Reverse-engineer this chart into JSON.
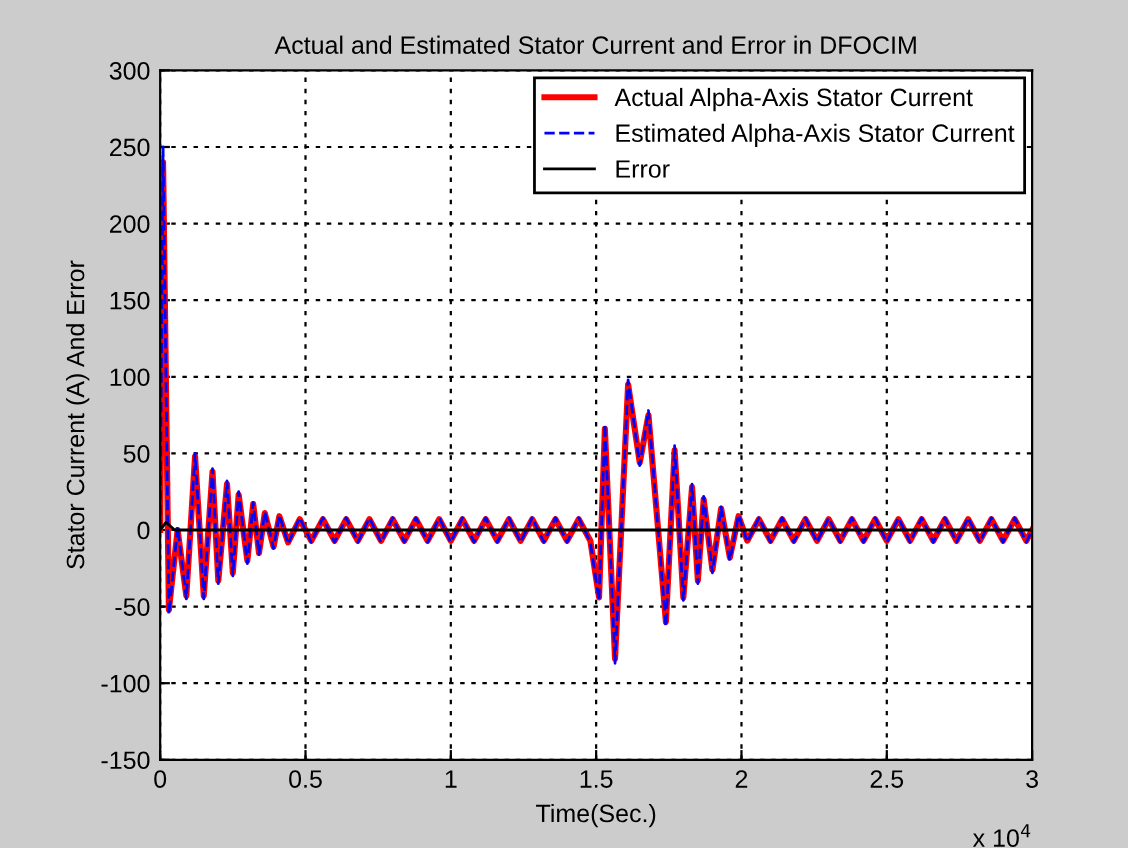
{
  "chart_data": {
    "type": "line",
    "title": "Actual and Estimated Stator Current and Error in DFOCIM",
    "xlabel": "Time(Sec.)",
    "ylabel": "Stator Current (A) And Error",
    "annotations": [
      "x 10$^{4}$"
    ],
    "x": [
      0,
      0.01,
      0.03,
      0.06,
      0.09,
      0.12,
      0.15,
      0.18,
      0.2,
      0.23,
      0.25,
      0.27,
      0.3,
      0.32,
      0.34,
      0.36,
      0.39,
      0.41,
      0.44,
      0.48,
      0.52,
      0.56,
      0.6,
      0.64,
      0.68,
      0.72,
      0.76,
      0.8,
      0.84,
      0.88,
      0.92,
      0.96,
      1.0,
      1.04,
      1.08,
      1.12,
      1.16,
      1.2,
      1.24,
      1.28,
      1.32,
      1.36,
      1.4,
      1.44,
      1.48,
      1.51,
      1.53,
      1.565,
      1.61,
      1.65,
      1.68,
      1.74,
      1.77,
      1.8,
      1.83,
      1.85,
      1.87,
      1.9,
      1.93,
      1.96,
      1.99,
      2.02,
      2.06,
      2.1,
      2.14,
      2.18,
      2.22,
      2.26,
      2.3,
      2.34,
      2.38,
      2.42,
      2.46,
      2.5,
      2.54,
      2.58,
      2.62,
      2.66,
      2.7,
      2.74,
      2.78,
      2.82,
      2.86,
      2.9,
      2.94,
      2.98,
      3.0
    ],
    "series": [
      {
        "name": "Actual Alpha-Axis Stator Current",
        "color": "#ff0000",
        "line_style": "solid",
        "values": [
          0,
          240,
          -52,
          0,
          -43,
          48,
          -43,
          38,
          -33,
          30,
          -28,
          23,
          -20,
          17,
          -15,
          11,
          -11,
          9,
          -8,
          7,
          -7,
          7,
          -7,
          7,
          -7,
          7,
          -7,
          7,
          -7,
          7,
          -7,
          7,
          -7,
          7,
          -7,
          7,
          -7,
          7,
          -7,
          7,
          -7,
          7,
          -7,
          7,
          -7,
          -44,
          66,
          -84,
          95,
          44,
          75,
          -60,
          52,
          -44,
          28,
          -33,
          20,
          -26,
          14,
          -18,
          9,
          -7,
          7,
          -7,
          7,
          -7,
          7,
          -7,
          7,
          -7,
          7,
          -7,
          7,
          -7,
          7,
          -7,
          7,
          -7,
          7,
          -7,
          7,
          -7,
          7,
          -7,
          7,
          -7,
          0
        ]
      },
      {
        "name": "Estimated Alpha-Axis Stator Current",
        "color": "#0000ff",
        "line_style": "dashed",
        "values": [
          0,
          250,
          -55,
          2,
          -45,
          50,
          -45,
          40,
          -35,
          32,
          -30,
          25,
          -22,
          18,
          -16,
          12,
          -12,
          10,
          -9,
          8,
          -8,
          8,
          -8,
          8,
          -8,
          8,
          -8,
          8,
          -8,
          8,
          -8,
          8,
          -8,
          8,
          -8,
          8,
          -8,
          8,
          -8,
          8,
          -8,
          8,
          -8,
          8,
          -8,
          -46,
          69,
          -87,
          98,
          42,
          78,
          -63,
          55,
          -46,
          30,
          -35,
          22,
          -28,
          15,
          -20,
          10,
          -8,
          8,
          -8,
          8,
          -8,
          8,
          -8,
          8,
          -8,
          8,
          -8,
          8,
          -8,
          8,
          -8,
          8,
          -8,
          8,
          -8,
          8,
          -8,
          8,
          -8,
          8,
          -8,
          0
        ]
      },
      {
        "name": "Error",
        "color": "#000000",
        "line_style": "solid",
        "x": [
          0,
          0.02,
          0.05,
          3.0
        ],
        "values": [
          0,
          5,
          0,
          0
        ]
      }
    ],
    "xlim": [
      0,
      3
    ],
    "xticks": [
      0,
      0.5,
      1,
      1.5,
      2,
      2.5,
      3
    ],
    "ylim": [
      -150,
      300
    ],
    "yticks": [
      -150,
      -100,
      -50,
      0,
      50,
      100,
      150,
      200,
      250,
      300
    ],
    "grid": true,
    "legend": "top right"
  }
}
